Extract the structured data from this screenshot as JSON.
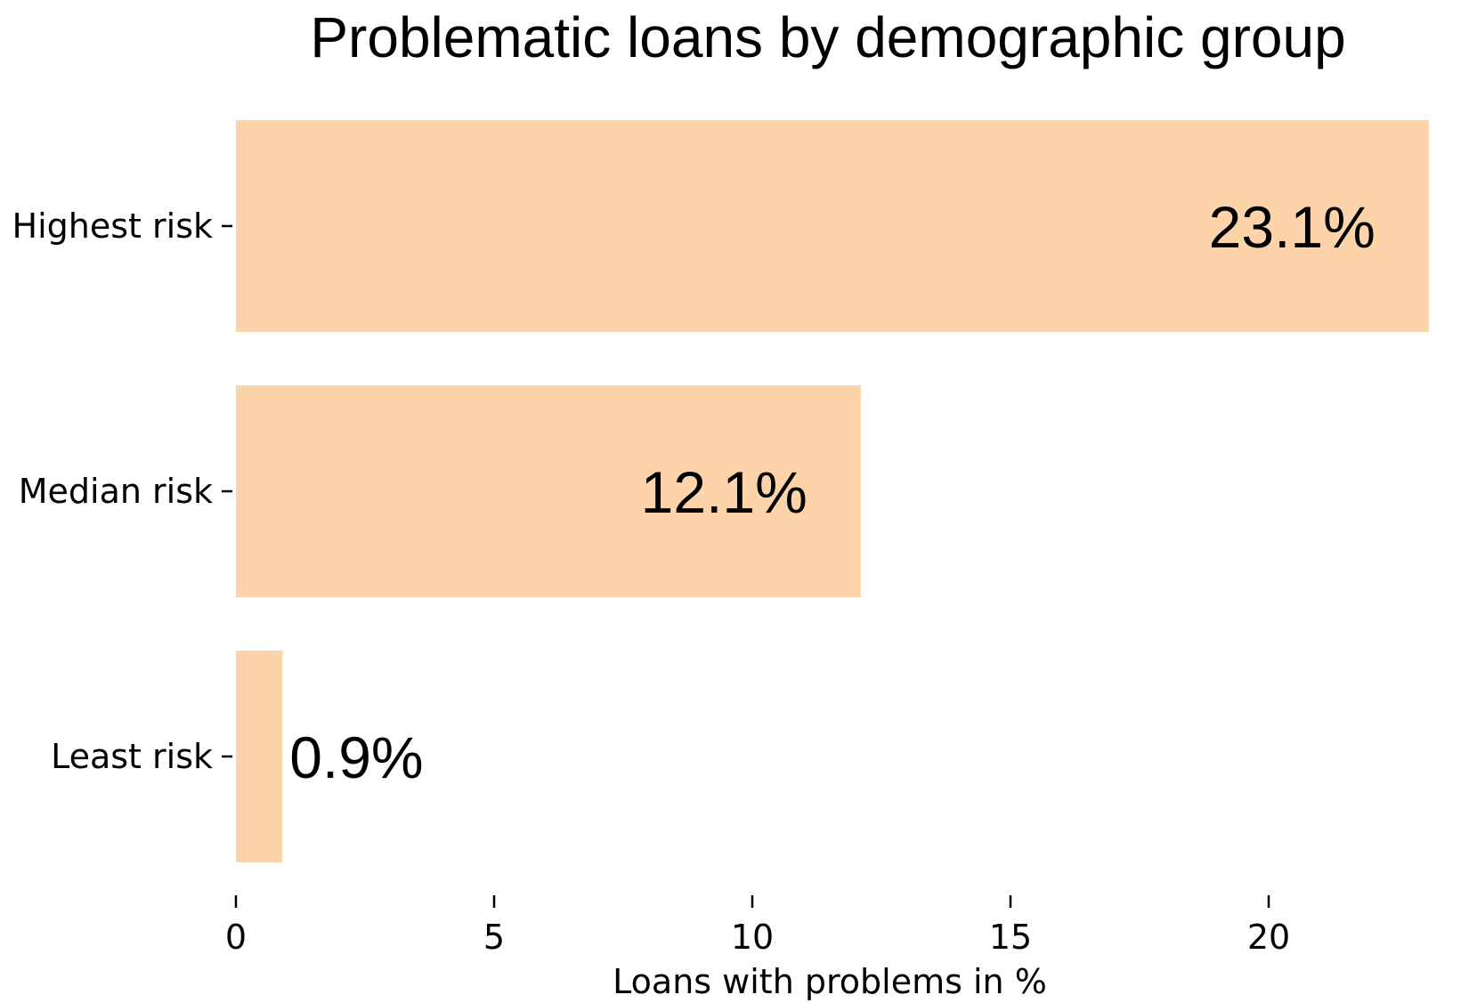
{
  "chart_data": {
    "type": "bar",
    "orientation": "horizontal",
    "title": "Problematic loans by demographic group",
    "xlabel": "Loans with problems in %",
    "ylabel": "",
    "categories": [
      "Highest risk",
      "Median risk",
      "Least risk"
    ],
    "values": [
      23.1,
      12.1,
      0.9
    ],
    "data_labels": [
      "23.1%",
      "12.1%",
      "0.9%"
    ],
    "xlim": [
      0,
      23.1
    ],
    "xticks": [
      0,
      5,
      10,
      15,
      20
    ],
    "xtick_labels": [
      "0",
      "5",
      "10",
      "15",
      "20"
    ],
    "bar_color": "#fdd3a9",
    "grid": false,
    "legend": "none"
  }
}
